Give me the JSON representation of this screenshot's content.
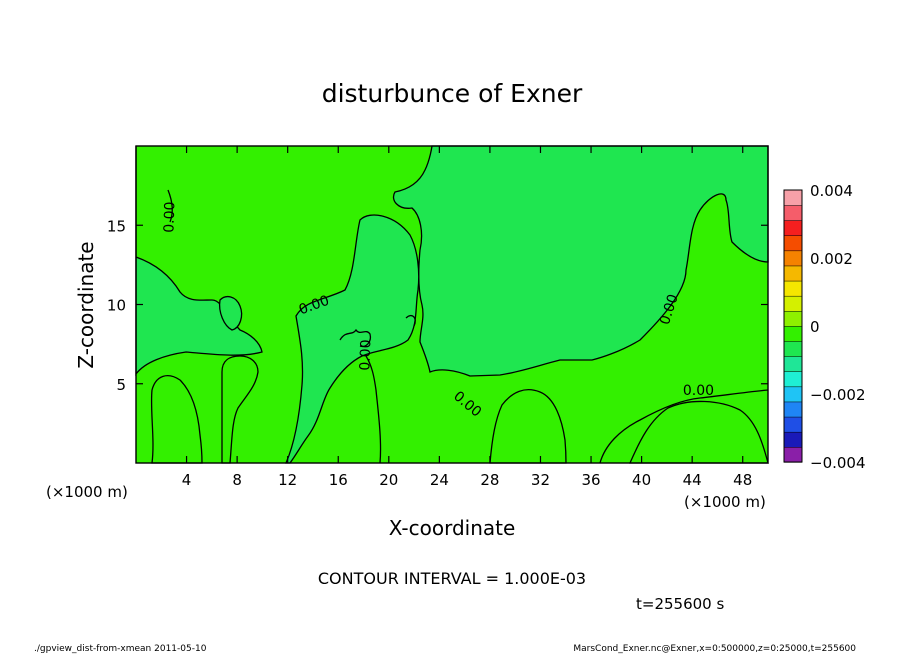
{
  "chart_data": {
    "type": "heatmap",
    "title": "disturbunce of Exner",
    "xlabel": "X-coordinate",
    "ylabel": "Z-coordinate",
    "x_unit_left": "(×1000 m)",
    "x_unit_right": "(×1000 m)",
    "xlim": [
      0,
      50
    ],
    "ylim": [
      0,
      20
    ],
    "x_ticks": [
      "4",
      "8",
      "12",
      "16",
      "20",
      "24",
      "28",
      "32",
      "36",
      "40",
      "44",
      "48"
    ],
    "y_ticks": [
      "5",
      "10",
      "15"
    ],
    "x_tick_values": [
      4,
      8,
      12,
      16,
      20,
      24,
      28,
      32,
      36,
      40,
      44,
      48
    ],
    "y_tick_values": [
      5,
      10,
      15
    ],
    "contour_interval_label": "CONTOUR INTERVAL = 1.000E-03",
    "time_label": "t=255600 s",
    "contour_labels": [
      {
        "text": "0.00",
        "x": 3.0,
        "y": 15.5,
        "angle": -88
      },
      {
        "text": "0.00",
        "x": 14.2,
        "y": 9.7,
        "angle": -20
      },
      {
        "text": "0.00",
        "x": 18.5,
        "y": 6.8,
        "angle": -88
      },
      {
        "text": "0.00",
        "x": 26.0,
        "y": 3.5,
        "angle": 40
      },
      {
        "text": "0.00",
        "x": 42.5,
        "y": 9.6,
        "angle": -72
      },
      {
        "text": "0.00",
        "x": 44.5,
        "y": 4.3,
        "angle": 0
      }
    ],
    "colorbar": {
      "min": -0.004,
      "max": 0.004,
      "tick_labels": [
        "0.004",
        "0.002",
        "0",
        "−0.002",
        "−0.004"
      ],
      "tick_values": [
        0.004,
        0.002,
        0,
        -0.002,
        -0.004
      ],
      "colors": [
        "#8a1fa8",
        "#1a1ab8",
        "#1f4fe6",
        "#1f85f5",
        "#1fc4f5",
        "#1fefd4",
        "#1fe697",
        "#1fe650",
        "#33f000",
        "#8ef000",
        "#d4f000",
        "#f5e600",
        "#f5b800",
        "#f58200",
        "#f54d00",
        "#f51f1f",
        "#f55d6a",
        "#f7a0a8"
      ]
    },
    "field": {
      "background_value": 0.0003,
      "background_color": "#33f000",
      "negative_region_color": "#1fe650"
    }
  },
  "footer": {
    "left": "./gpview_dist-from-xmean  2011-05-10",
    "right": "MarsCond_Exner.nc@Exner,x=0:500000,z=0:25000,t=255600"
  }
}
